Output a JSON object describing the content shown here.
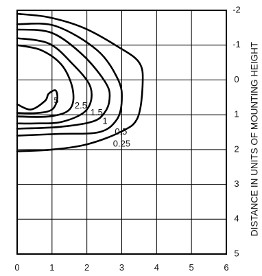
{
  "chart_data": {
    "type": "contour",
    "x": {
      "range": [
        0,
        6
      ],
      "ticks": [
        "0",
        "1",
        "2",
        "3",
        "4",
        "5",
        "6"
      ]
    },
    "y": {
      "range": [
        -2,
        5
      ],
      "reversed": true,
      "ticks": [
        "-2",
        "-1",
        "0",
        "1",
        "2",
        "3",
        "4",
        "5"
      ]
    },
    "ylabel": "DISTANCE IN UNITS OF MOUNTING HEIGHT",
    "grid": true,
    "series": [
      {
        "name": "5",
        "points": [
          [
            0,
            0.7
          ],
          [
            0.4,
            0.85
          ],
          [
            0.8,
            0.6
          ],
          [
            0.9,
            0.4
          ],
          [
            1.1,
            0.3
          ],
          [
            1.15,
            0.55
          ],
          [
            1.0,
            0.85
          ],
          [
            0.6,
            0.95
          ],
          [
            0,
            0.95
          ]
        ]
      },
      {
        "name": "2.5",
        "points": [
          [
            0,
            -1.0
          ],
          [
            0.7,
            -0.85
          ],
          [
            1.3,
            -0.4
          ],
          [
            1.6,
            0.3
          ],
          [
            1.5,
            0.85
          ],
          [
            0.9,
            1.05
          ],
          [
            0,
            1.05
          ]
        ]
      },
      {
        "name": "1.5",
        "points": [
          [
            0,
            -1.2
          ],
          [
            0.9,
            -1.05
          ],
          [
            1.55,
            -0.5
          ],
          [
            2.1,
            0.2
          ],
          [
            2.0,
            0.85
          ],
          [
            1.3,
            1.2
          ],
          [
            0.5,
            1.25
          ],
          [
            0,
            1.25
          ]
        ]
      },
      {
        "name": "1",
        "points": [
          [
            0,
            -1.45
          ],
          [
            1.0,
            -1.35
          ],
          [
            1.9,
            -0.7
          ],
          [
            2.55,
            0.1
          ],
          [
            2.65,
            0.55
          ],
          [
            2.5,
            0.95
          ],
          [
            2.15,
            1.2
          ],
          [
            1.2,
            1.35
          ],
          [
            0,
            1.4
          ]
        ]
      },
      {
        "name": "0.5",
        "points": [
          [
            0,
            -1.6
          ],
          [
            1.1,
            -1.55
          ],
          [
            2.3,
            -0.85
          ],
          [
            2.9,
            0.0
          ],
          [
            3.0,
            0.6
          ],
          [
            2.85,
            1.15
          ],
          [
            2.35,
            1.5
          ],
          [
            1.2,
            1.55
          ],
          [
            0,
            1.6
          ]
        ]
      },
      {
        "name": "0.25",
        "points": [
          [
            0,
            -1.9
          ],
          [
            0.9,
            -1.8
          ],
          [
            1.9,
            -1.5
          ],
          [
            2.9,
            -0.95
          ],
          [
            3.5,
            -0.5
          ],
          [
            3.6,
            0.1
          ],
          [
            3.45,
            1.1
          ],
          [
            2.95,
            1.5
          ],
          [
            2.0,
            1.85
          ],
          [
            1.0,
            2.0
          ],
          [
            0,
            2.05
          ]
        ]
      }
    ],
    "labels": [
      {
        "text": "5",
        "x": 1.05,
        "y": 0.6
      },
      {
        "text": "2.5",
        "x": 1.65,
        "y": 0.75
      },
      {
        "text": "1.5",
        "x": 2.1,
        "y": 0.95
      },
      {
        "text": "1",
        "x": 2.45,
        "y": 1.2
      },
      {
        "text": "0.5",
        "x": 2.8,
        "y": 1.5
      },
      {
        "text": "0.25",
        "x": 2.75,
        "y": 1.85
      }
    ]
  }
}
